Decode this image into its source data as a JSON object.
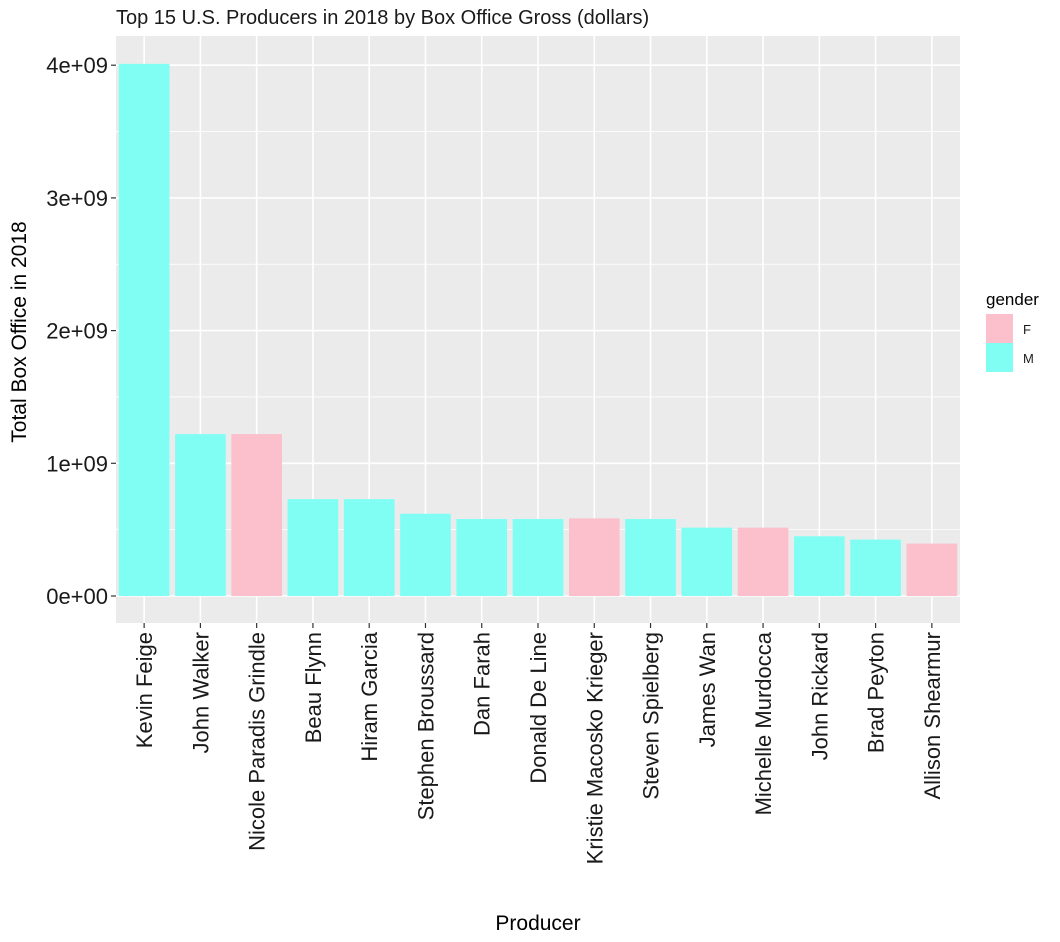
{
  "chart_data": {
    "type": "bar",
    "title": "Top 15 U.S. Producers in 2018 by Box Office Gross (dollars)",
    "xlabel": "Producer",
    "ylabel": "Total Box Office in 2018",
    "ylim": [
      -200000000,
      4150000000
    ],
    "yticks": [
      0,
      1000000000,
      2000000000,
      3000000000,
      4000000000
    ],
    "ytick_labels": [
      "0e+00",
      "1e+09",
      "2e+09",
      "3e+09",
      "4e+09"
    ],
    "grid": true,
    "legend": {
      "title": "gender",
      "position": "right",
      "entries": [
        {
          "label": "F",
          "color": "#FBC0CB"
        },
        {
          "label": "M",
          "color": "#80FEF4"
        }
      ]
    },
    "categories": [
      "Kevin Feige",
      "John Walker",
      "Nicole Paradis Grindle",
      "Beau Flynn",
      "Hiram Garcia",
      "Stephen Broussard",
      "Dan Farah",
      "Donald De Line",
      "Kristie Macosko Krieger",
      "Steven Spielberg",
      "James Wan",
      "Michelle Murdocca",
      "John Rickard",
      "Brad Peyton",
      "Allison Shearmur"
    ],
    "values": [
      4010000000,
      1220000000,
      1220000000,
      730000000,
      730000000,
      620000000,
      580000000,
      580000000,
      585000000,
      580000000,
      515000000,
      515000000,
      450000000,
      425000000,
      395000000
    ],
    "gender": [
      "M",
      "M",
      "F",
      "M",
      "M",
      "M",
      "M",
      "M",
      "F",
      "M",
      "M",
      "F",
      "M",
      "M",
      "F"
    ]
  },
  "colors": {
    "panel_background": "#EBEBEB",
    "grid": "#FFFFFF",
    "female": "#FBC0CB",
    "male": "#80FEF4"
  }
}
